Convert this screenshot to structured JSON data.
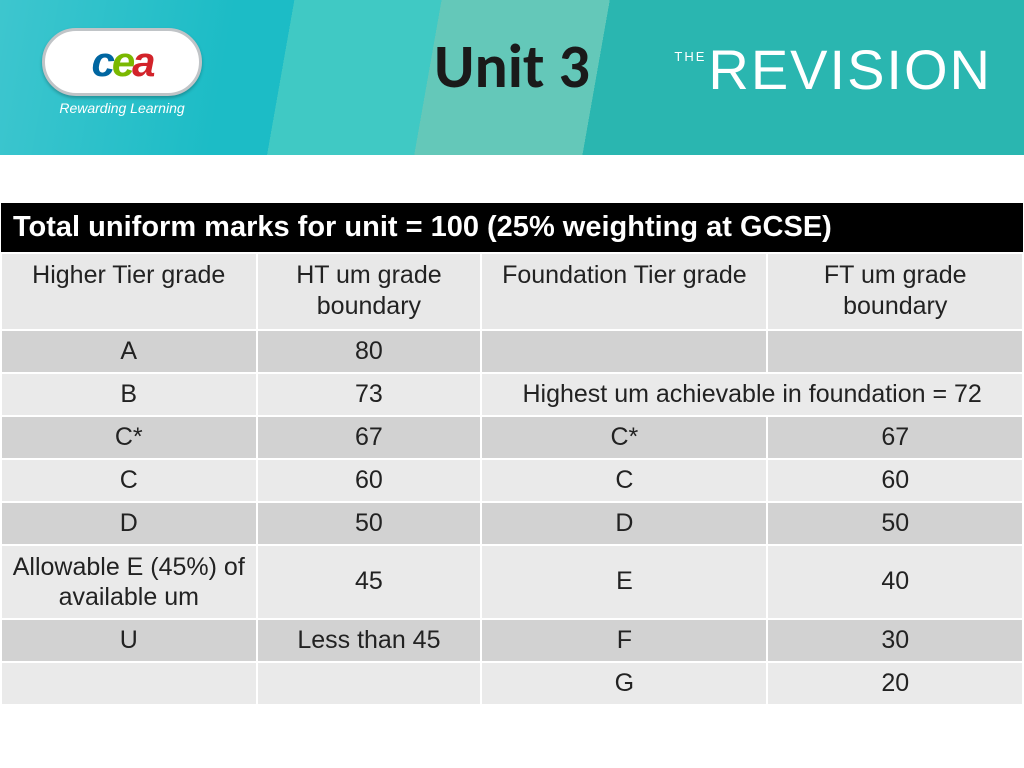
{
  "header": {
    "title": "Unit 3",
    "logo_letters": {
      "c": "c",
      "e": "e",
      "a": "a"
    },
    "tagline": "Rewarding Learning",
    "brand_the": "THE",
    "brand_main": "REVISION"
  },
  "table": {
    "title": "Total uniform marks for unit = 100 (25% weighting at GCSE)",
    "columns": [
      "Higher Tier grade",
      "HT um grade boundary",
      "Foundation Tier grade",
      "FT um grade boundary"
    ],
    "rows": [
      {
        "cells": [
          "A",
          "80",
          "",
          ""
        ],
        "shade": "dark"
      },
      {
        "cells": [
          "B",
          "73"
        ],
        "merged_right": "Highest um achievable in foundation = 72",
        "shade": "light"
      },
      {
        "cells": [
          "C*",
          "67",
          "C*",
          "67"
        ],
        "shade": "dark"
      },
      {
        "cells": [
          "C",
          "60",
          "C",
          "60"
        ],
        "shade": "light"
      },
      {
        "cells": [
          "D",
          "50",
          "D",
          "50"
        ],
        "shade": "dark"
      },
      {
        "cells": [
          "Allowable E (45%) of available um",
          "45",
          "E",
          "40"
        ],
        "shade": "light",
        "wrap_first": true
      },
      {
        "cells": [
          "U",
          "Less than 45",
          "F",
          "30"
        ],
        "shade": "dark"
      },
      {
        "cells": [
          "",
          "",
          "G",
          "20"
        ],
        "shade": "light"
      }
    ],
    "col_widths": [
      "25%",
      "22%",
      "28%",
      "25%"
    ]
  },
  "colors": {
    "title_bg": "#000000",
    "title_fg": "#ffffff",
    "row_dark": "#d2d2d2",
    "row_light": "#eaeaea",
    "header_teal": "#1cbcc6"
  }
}
